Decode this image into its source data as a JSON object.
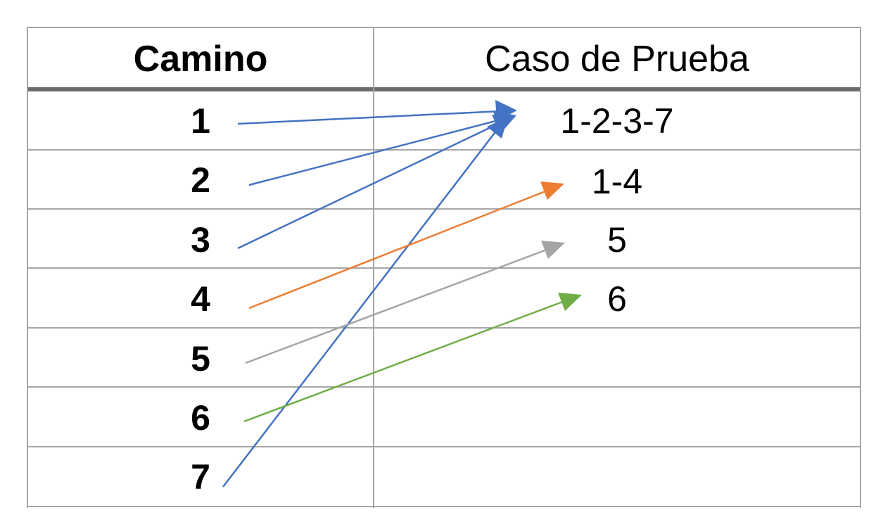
{
  "headers": {
    "camino": "Camino",
    "caso": "Caso de Prueba"
  },
  "rows": [
    {
      "camino": "1",
      "caso": "1-2-3-7"
    },
    {
      "camino": "2",
      "caso": "1-4"
    },
    {
      "camino": "3",
      "caso": "5"
    },
    {
      "camino": "4",
      "caso": "6"
    },
    {
      "camino": "5",
      "caso": ""
    },
    {
      "camino": "6",
      "caso": ""
    },
    {
      "camino": "7",
      "caso": ""
    }
  ],
  "arrows": [
    {
      "from": "1",
      "to": "1-2-3-7",
      "color": "#4472c4"
    },
    {
      "from": "2",
      "to": "1-2-3-7",
      "color": "#4472c4"
    },
    {
      "from": "3",
      "to": "1-2-3-7",
      "color": "#4472c4"
    },
    {
      "from": "7",
      "to": "1-2-3-7",
      "color": "#4472c4"
    },
    {
      "from": "4",
      "to": "1-4",
      "color": "#ed7d31"
    },
    {
      "from": "5",
      "to": "5",
      "color": "#a5a5a5"
    },
    {
      "from": "6",
      "to": "6",
      "color": "#70ad47"
    }
  ]
}
